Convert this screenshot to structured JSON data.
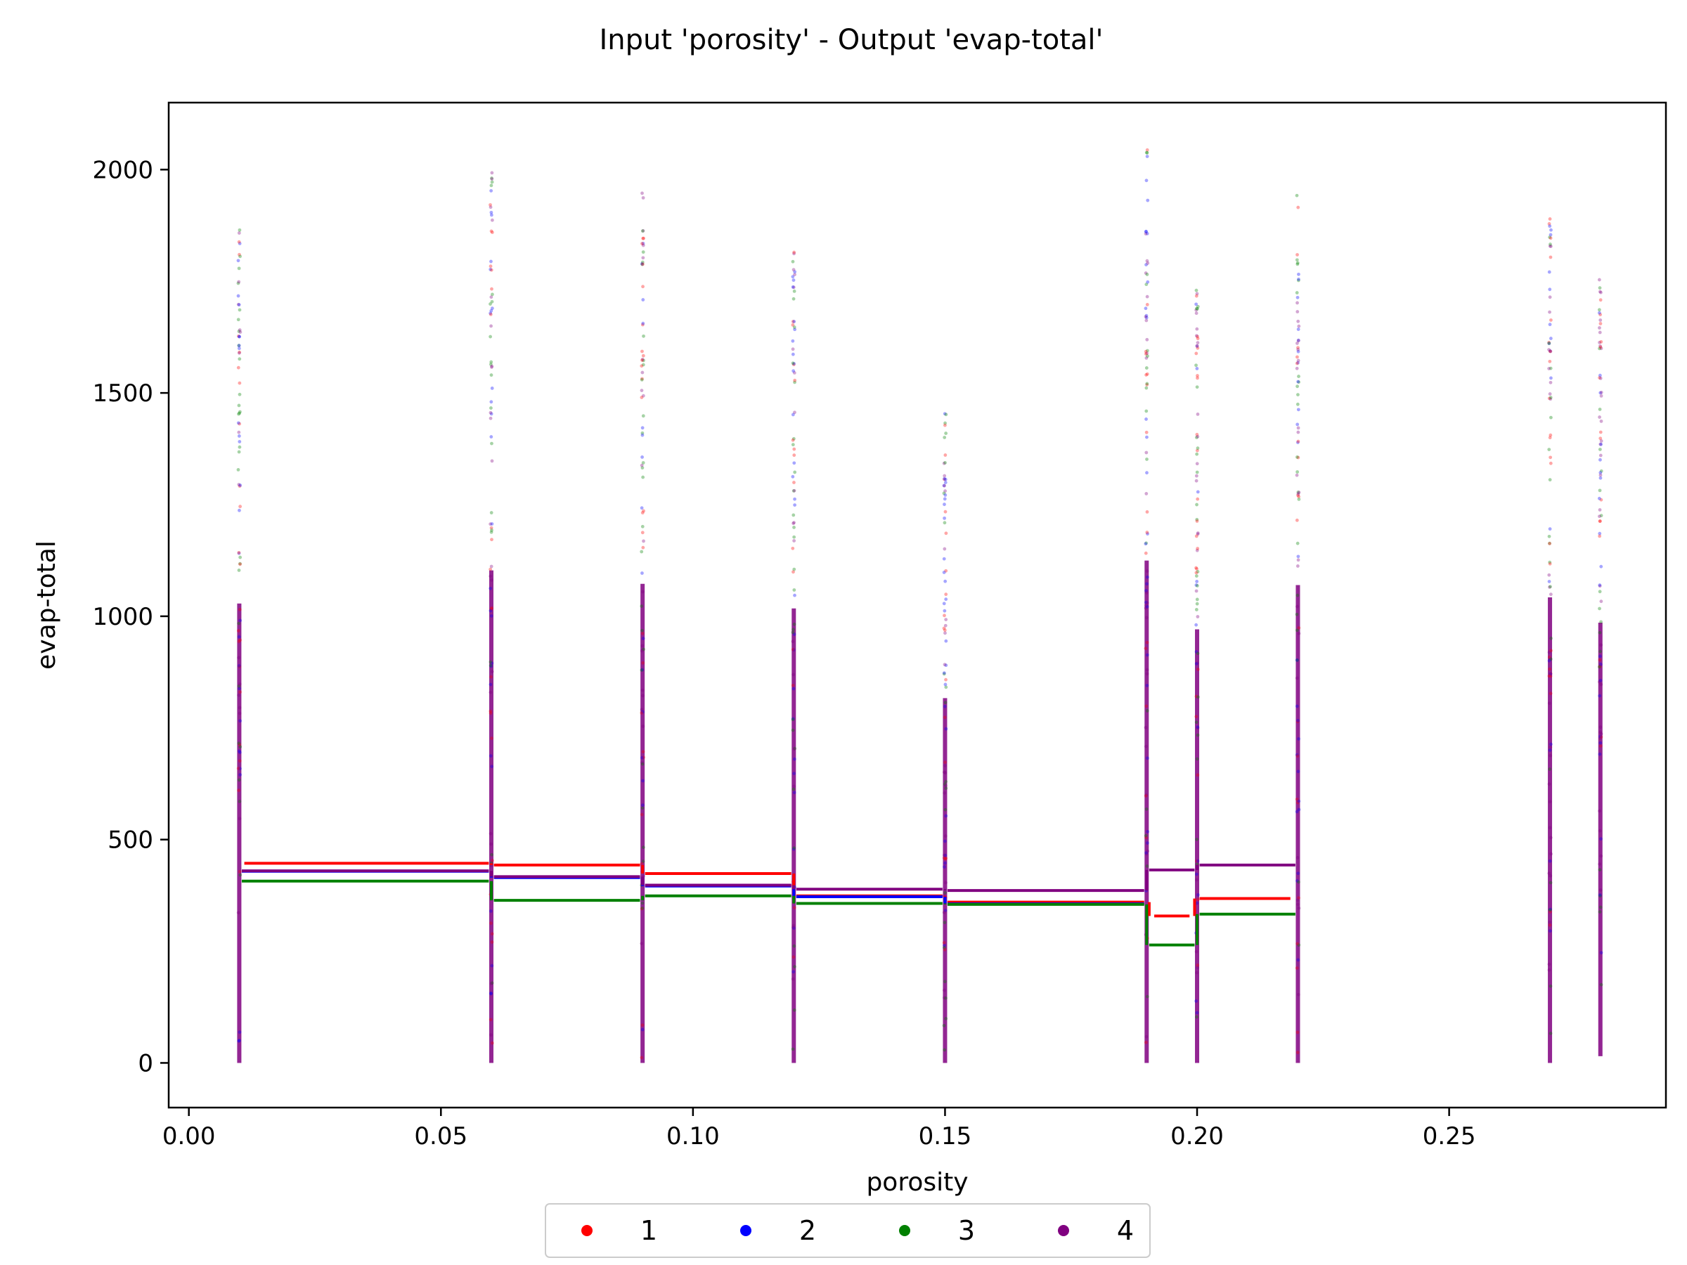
{
  "chart_data": {
    "type": "scatter",
    "title": "Input 'porosity' - Output 'evap-total'",
    "xlabel": "porosity",
    "ylabel": "evap-total",
    "xlim": [
      -0.004,
      0.293
    ],
    "ylim": [
      -100,
      2150
    ],
    "xticks": [
      0.0,
      0.05,
      0.1,
      0.15,
      0.2,
      0.25
    ],
    "xtick_labels": [
      "0.00",
      "0.05",
      "0.10",
      "0.15",
      "0.20",
      "0.25"
    ],
    "yticks": [
      0,
      500,
      1000,
      1500,
      2000
    ],
    "ytick_labels": [
      "0",
      "500",
      "1000",
      "1500",
      "2000"
    ],
    "grid": false,
    "legend_position": "bottom-center",
    "series": [
      {
        "name": "1",
        "color": "#ff0000",
        "steps": [
          {
            "x0": 0.011,
            "x1": 0.0595,
            "y": 447
          },
          {
            "x0": 0.0605,
            "x1": 0.0895,
            "y": 443
          },
          {
            "x0": 0.0905,
            "x1": 0.1195,
            "y": 424
          },
          {
            "x0": 0.1205,
            "x1": 0.1495,
            "y": 374
          },
          {
            "x0": 0.1505,
            "x1": 0.1895,
            "y": 360
          },
          {
            "x0": 0.1915,
            "x1": 0.1985,
            "y": 329
          },
          {
            "x0": 0.2005,
            "x1": 0.2185,
            "y": 368
          }
        ]
      },
      {
        "name": "2",
        "color": "#0000ff",
        "steps": [
          {
            "x0": 0.0105,
            "x1": 0.0595,
            "y": 429
          },
          {
            "x0": 0.0605,
            "x1": 0.0895,
            "y": 415
          },
          {
            "x0": 0.0905,
            "x1": 0.1195,
            "y": 396
          },
          {
            "x0": 0.1205,
            "x1": 0.1495,
            "y": 372
          },
          {
            "x0": 0.1505,
            "x1": 0.1895,
            "y": 356
          }
        ]
      },
      {
        "name": "3",
        "color": "#008000",
        "steps": [
          {
            "x0": 0.0105,
            "x1": 0.0595,
            "y": 407
          },
          {
            "x0": 0.0605,
            "x1": 0.0895,
            "y": 364
          },
          {
            "x0": 0.0905,
            "x1": 0.1195,
            "y": 374
          },
          {
            "x0": 0.1205,
            "x1": 0.1495,
            "y": 357
          },
          {
            "x0": 0.1505,
            "x1": 0.1895,
            "y": 355
          },
          {
            "x0": 0.1905,
            "x1": 0.1995,
            "y": 264
          },
          {
            "x0": 0.2005,
            "x1": 0.2195,
            "y": 333
          }
        ]
      },
      {
        "name": "4",
        "color": "#800080",
        "steps": [
          {
            "x0": 0.0105,
            "x1": 0.0595,
            "y": 430
          },
          {
            "x0": 0.0605,
            "x1": 0.0895,
            "y": 417
          },
          {
            "x0": 0.0905,
            "x1": 0.1195,
            "y": 398
          },
          {
            "x0": 0.1205,
            "x1": 0.1495,
            "y": 389
          },
          {
            "x0": 0.1505,
            "x1": 0.1895,
            "y": 386
          },
          {
            "x0": 0.1905,
            "x1": 0.1995,
            "y": 432
          },
          {
            "x0": 0.2005,
            "x1": 0.2195,
            "y": 443
          }
        ]
      }
    ],
    "scatter_columns": [
      {
        "x": 0.01,
        "ymin": 0,
        "ymax": 1870
      },
      {
        "x": 0.06,
        "ymin": 0,
        "ymax": 2005
      },
      {
        "x": 0.09,
        "ymin": 0,
        "ymax": 1950
      },
      {
        "x": 0.12,
        "ymin": 0,
        "ymax": 1850
      },
      {
        "x": 0.15,
        "ymin": 0,
        "ymax": 1485
      },
      {
        "x": 0.19,
        "ymin": 0,
        "ymax": 2045
      },
      {
        "x": 0.2,
        "ymin": 0,
        "ymax": 1765
      },
      {
        "x": 0.22,
        "ymin": 0,
        "ymax": 1945
      },
      {
        "x": 0.27,
        "ymin": 0,
        "ymax": 1895
      },
      {
        "x": 0.28,
        "ymin": 15,
        "ymax": 1780
      }
    ]
  }
}
